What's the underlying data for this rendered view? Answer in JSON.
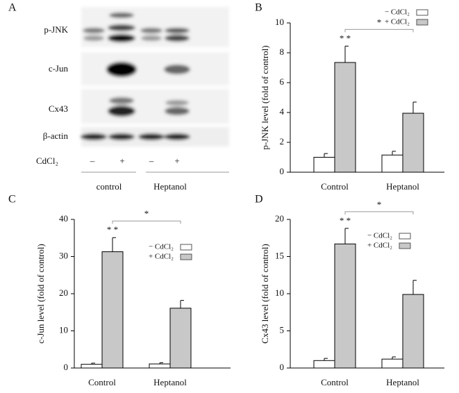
{
  "blot": {
    "panel": "A",
    "rows": [
      "p-JNK",
      "c-Jun",
      "Cx43",
      "β-actin"
    ],
    "treatment": "CdCl₂",
    "signs": [
      "–",
      "+",
      "–",
      "+"
    ],
    "groups": [
      "control",
      "Heptanol"
    ]
  },
  "chart_data": [
    {
      "type": "bar",
      "panel": "B",
      "ylabel": "p-JNK level (fold of control)",
      "categories": [
        "Control",
        "Heptanol"
      ],
      "series": [
        {
          "name": "− CdCl₂",
          "color": "#ffffff",
          "values": [
            1.0,
            1.15
          ],
          "errors": [
            0.25,
            0.25
          ]
        },
        {
          "name": "+ CdCl₂",
          "color": "#c8c8c8",
          "values": [
            7.35,
            3.95
          ],
          "errors": [
            1.1,
            0.75
          ]
        }
      ],
      "ylim": [
        0,
        10
      ],
      "yticks": [
        0,
        2,
        4,
        6,
        8,
        10
      ],
      "annotations": [
        "* *",
        "*"
      ],
      "legend": "above right"
    },
    {
      "type": "bar",
      "panel": "C",
      "ylabel": "c-Jun level (fold of control)",
      "categories": [
        "Control",
        "Heptanol"
      ],
      "series": [
        {
          "name": "− CdCl₂",
          "color": "#ffffff",
          "values": [
            1.0,
            1.1
          ],
          "errors": [
            0.3,
            0.3
          ]
        },
        {
          "name": "+ CdCl₂",
          "color": "#c8c8c8",
          "values": [
            31.3,
            16.1
          ],
          "errors": [
            3.8,
            2.1
          ]
        }
      ],
      "ylim": [
        0,
        40
      ],
      "yticks": [
        0,
        10,
        20,
        30,
        40
      ],
      "annotations": [
        "* *",
        "*"
      ],
      "legend": "center right"
    },
    {
      "type": "bar",
      "panel": "D",
      "ylabel": "Cx43 level (fold of control)",
      "categories": [
        "Control",
        "Heptanol"
      ],
      "series": [
        {
          "name": "− CdCl₂",
          "color": "#ffffff",
          "values": [
            1.0,
            1.2
          ],
          "errors": [
            0.3,
            0.3
          ]
        },
        {
          "name": "+ CdCl₂",
          "color": "#c8c8c8",
          "values": [
            16.7,
            9.9
          ],
          "errors": [
            2.1,
            1.9
          ]
        }
      ],
      "ylim": [
        0,
        20
      ],
      "yticks": [
        0,
        5,
        10,
        15,
        20
      ],
      "annotations": [
        "* *",
        "*"
      ],
      "legend": "upper right"
    }
  ]
}
